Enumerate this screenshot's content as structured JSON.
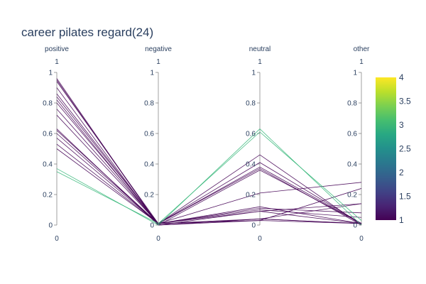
{
  "chart_data": {
    "type": "parallel_coordinates",
    "title": "career pilates regard(24)",
    "dimensions": [
      {
        "name": "positive",
        "range_label_top": "1",
        "range_label_bottom": "0",
        "ticks": [
          "0",
          "0.2",
          "0.4",
          "0.6",
          "0.8",
          "1"
        ]
      },
      {
        "name": "negative",
        "range_label_top": "1",
        "range_label_bottom": "0",
        "ticks": [
          "0",
          "0.2",
          "0.4",
          "0.6",
          "0.8",
          "1"
        ]
      },
      {
        "name": "neutral",
        "range_label_top": "1",
        "range_label_bottom": "0",
        "ticks": [
          "0",
          "0.2",
          "0.4",
          "0.6",
          "0.8",
          "1"
        ]
      },
      {
        "name": "other",
        "range_label_top": "1",
        "range_label_bottom": "0",
        "ticks": [
          "0",
          "0.2",
          "0.4",
          "0.6",
          "0.8",
          "1"
        ]
      }
    ],
    "axis_range": [
      0,
      1
    ],
    "colorscale": "viridis",
    "color_range": [
      1,
      4
    ],
    "colorbar_ticks": [
      "1",
      "1.5",
      "2",
      "2.5",
      "3",
      "3.5",
      "4"
    ],
    "lines": [
      {
        "values": [
          0.96,
          0.0,
          0.03,
          0.01
        ],
        "color": 1
      },
      {
        "values": [
          0.95,
          0.0,
          0.04,
          0.01
        ],
        "color": 1
      },
      {
        "values": [
          0.94,
          0.01,
          0.04,
          0.01
        ],
        "color": 1
      },
      {
        "values": [
          0.9,
          0.0,
          0.09,
          0.01
        ],
        "color": 1
      },
      {
        "values": [
          0.86,
          0.01,
          0.12,
          0.01
        ],
        "color": 1
      },
      {
        "values": [
          0.84,
          0.01,
          0.1,
          0.05
        ],
        "color": 1
      },
      {
        "values": [
          0.82,
          0.0,
          0.04,
          0.14
        ],
        "color": 1
      },
      {
        "values": [
          0.8,
          0.01,
          0.11,
          0.08
        ],
        "color": 1
      },
      {
        "values": [
          0.76,
          0.01,
          0.09,
          0.14
        ],
        "color": 1
      },
      {
        "values": [
          0.72,
          0.01,
          0.03,
          0.24
        ],
        "color": 1
      },
      {
        "values": [
          0.63,
          0.0,
          0.36,
          0.01
        ],
        "color": 1
      },
      {
        "values": [
          0.62,
          0.01,
          0.37,
          0.0
        ],
        "color": 1
      },
      {
        "values": [
          0.6,
          0.01,
          0.38,
          0.01
        ],
        "color": 1
      },
      {
        "values": [
          0.57,
          0.01,
          0.41,
          0.01
        ],
        "color": 1
      },
      {
        "values": [
          0.53,
          0.01,
          0.46,
          0.0
        ],
        "color": 1
      },
      {
        "values": [
          0.5,
          0.01,
          0.21,
          0.28
        ],
        "color": 1
      },
      {
        "values": [
          0.37,
          0.0,
          0.63,
          0.0
        ],
        "color": 3
      },
      {
        "values": [
          0.35,
          0.01,
          0.61,
          0.03
        ],
        "color": 3
      }
    ]
  }
}
